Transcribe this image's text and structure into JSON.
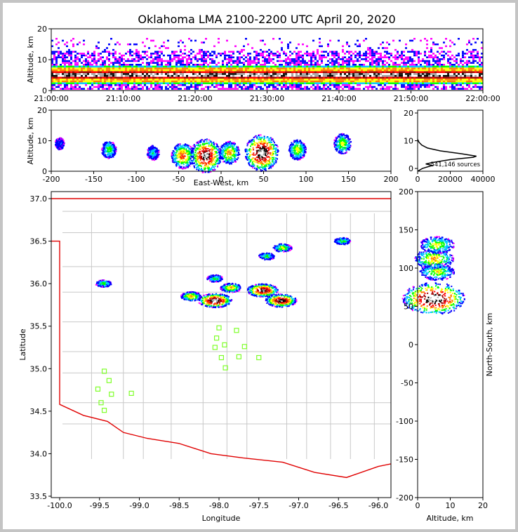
{
  "title": "Oklahoma LMA 2100-2200 UTC April 20, 2020",
  "colors": {
    "state_border": "#e00000",
    "county_lines": "#c8c8c8",
    "stations": "#7fff2a",
    "density_scale": [
      "#ff00ff",
      "#0000ff",
      "#00c8ff",
      "#00ff00",
      "#ffff00",
      "#ff8000",
      "#ff0000",
      "#a00000",
      "#000000",
      "#a0a0a0",
      "#ffffff"
    ]
  },
  "time_panel": {
    "ylabel": "Altitude, km",
    "yticks": [
      "0",
      "10",
      "20"
    ],
    "xticks": [
      "21:00:00",
      "21:10:00",
      "21:20:00",
      "21:30:00",
      "21:40:00",
      "21:50:00",
      "22:00:00"
    ]
  },
  "ew_panel": {
    "xlabel": "East-West, km",
    "ylabel": "Altitude, km",
    "xticks": [
      "-200",
      "-150",
      "-100",
      "-50",
      "0",
      "50",
      "100",
      "150",
      "200"
    ],
    "yticks": [
      "0",
      "10",
      "20"
    ]
  },
  "hist_panel": {
    "yticks": [
      "0",
      "10",
      "20"
    ],
    "xticks": [
      "0",
      "20000",
      "40000"
    ],
    "annotation": "541,146 sources"
  },
  "map_panel": {
    "xlabel": "Longitude",
    "ylabel": "Latitude",
    "xticks": [
      "-100.0",
      "-99.5",
      "-99.0",
      "-98.5",
      "-98.0",
      "-97.5",
      "-97.0",
      "-96.5",
      "-96.0"
    ],
    "yticks": [
      "37.0",
      "36.5",
      "36.0",
      "35.5",
      "35.0",
      "34.5",
      "34.0",
      "33.5"
    ]
  },
  "ns_panel": {
    "xlabel": "Altitude, km",
    "ylabel": "North-South, km",
    "xticks": [
      "0",
      "10",
      "20"
    ],
    "yticks": [
      "200",
      "150",
      "100",
      "50",
      "0",
      "-50",
      "-100",
      "-150",
      "-200"
    ]
  },
  "chart_data": [
    {
      "type": "heatmap",
      "name": "altitude vs time",
      "x_range": [
        "21:00:00",
        "22:00:00"
      ],
      "y_range": [
        0,
        20
      ],
      "description_values": {
        "core_altitude_km": 5,
        "top_altitude_km": 14
      }
    },
    {
      "type": "heatmap",
      "name": "altitude vs east-west",
      "x_range": [
        -200,
        200
      ],
      "y_range": [
        0,
        20
      ],
      "cells": [
        {
          "x": -190,
          "y": 9,
          "level": 1
        },
        {
          "x": -132,
          "y": 7,
          "level": 3
        },
        {
          "x": -80,
          "y": 6,
          "level": 2
        },
        {
          "x": -45,
          "y": 5,
          "level": 6
        },
        {
          "x": -18,
          "y": 5,
          "level": 9
        },
        {
          "x": 10,
          "y": 6,
          "level": 5
        },
        {
          "x": 48,
          "y": 6,
          "level": 10
        },
        {
          "x": 90,
          "y": 7,
          "level": 4
        },
        {
          "x": 143,
          "y": 9,
          "level": 4
        }
      ]
    },
    {
      "type": "line",
      "name": "source histogram by altitude",
      "x_range": [
        0,
        40000
      ],
      "y_range": [
        0,
        21
      ],
      "points": [
        [
          0,
          0
        ],
        [
          3000,
          1
        ],
        [
          9000,
          2
        ],
        [
          5000,
          2.5
        ],
        [
          9000,
          3
        ],
        [
          20000,
          4
        ],
        [
          34000,
          4.8
        ],
        [
          36000,
          5.2
        ],
        [
          27000,
          6
        ],
        [
          14000,
          7
        ],
        [
          6000,
          8
        ],
        [
          2500,
          9
        ],
        [
          800,
          10
        ],
        [
          0,
          11
        ]
      ]
    },
    {
      "type": "scatter",
      "name": "lightning density map",
      "x_range": [
        -100.1,
        -95.75
      ],
      "y_range": [
        33.47,
        37.07
      ],
      "storms": [
        {
          "lon": -99.45,
          "lat": 36.0,
          "level": 3
        },
        {
          "lon": -98.35,
          "lat": 35.85,
          "level": 5
        },
        {
          "lon": -98.05,
          "lat": 35.8,
          "level": 10
        },
        {
          "lon": -97.85,
          "lat": 35.95,
          "level": 5
        },
        {
          "lon": -97.45,
          "lat": 35.92,
          "level": 9
        },
        {
          "lon": -97.22,
          "lat": 35.8,
          "level": 9
        },
        {
          "lon": -97.2,
          "lat": 36.42,
          "level": 4
        },
        {
          "lon": -96.45,
          "lat": 36.5,
          "level": 3
        },
        {
          "lon": -97.4,
          "lat": 36.32,
          "level": 3
        },
        {
          "lon": -98.05,
          "lat": 36.06,
          "level": 3
        }
      ],
      "stations": [
        [
          -99.44,
          34.97
        ],
        [
          -99.38,
          34.86
        ],
        [
          -99.52,
          34.76
        ],
        [
          -99.35,
          34.7
        ],
        [
          -99.1,
          34.71
        ],
        [
          -99.48,
          34.6
        ],
        [
          -99.44,
          34.51
        ],
        [
          -98.0,
          35.48
        ],
        [
          -98.03,
          35.36
        ],
        [
          -97.78,
          35.45
        ],
        [
          -97.93,
          35.28
        ],
        [
          -98.05,
          35.25
        ],
        [
          -97.68,
          35.26
        ],
        [
          -97.97,
          35.13
        ],
        [
          -97.75,
          35.14
        ],
        [
          -97.5,
          35.13
        ],
        [
          -97.92,
          35.01
        ]
      ]
    },
    {
      "type": "heatmap",
      "name": "north-south vs altitude",
      "x_range": [
        0,
        20
      ],
      "y_range": [
        -200,
        200
      ],
      "cells": [
        {
          "x": 5,
          "y": 60,
          "level": 10
        },
        {
          "x": 6,
          "y": 95,
          "level": 4
        },
        {
          "x": 5,
          "y": 112,
          "level": 5
        },
        {
          "x": 6,
          "y": 130,
          "level": 4
        }
      ]
    }
  ]
}
